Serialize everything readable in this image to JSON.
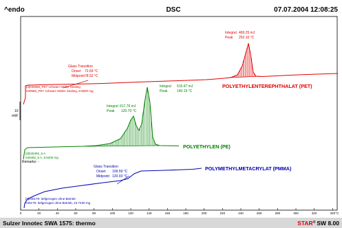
{
  "header": {
    "left": "^endo",
    "center": "DSC",
    "right": "07.07.2004 12:08:25"
  },
  "footer": {
    "left": "Sulzer Innotec SWA 1575: thermo",
    "right_star": "STAR",
    "right_rest": "SW 8.00"
  },
  "colors": {
    "frame": "#000000",
    "pet": "#e00000",
    "pe": "#008000",
    "pmma": "#0000b0",
    "footer_bar": "#d8d8d8"
  },
  "chart_data": {
    "type": "line",
    "title": "DSC",
    "xlabel": "°C",
    "xlim": [
      0,
      345
    ],
    "x_ticks": [
      0,
      20,
      40,
      60,
      80,
      100,
      120,
      140,
      160,
      180,
      200,
      220,
      240,
      260,
      280,
      300,
      320,
      340
    ],
    "scale_bar": {
      "value": "10",
      "unit": "mW"
    },
    "remarks_label": "Remarks: -",
    "series": [
      {
        "name": "POLYETHYLENTEREPHTHALAT (PET)",
        "color": "#e00000",
        "sample_lines": [
          "[3]030666_PET schwarz Müller Sealing",
          "030666_PET schwarz Müller Sealing, 8.9600 mg"
        ],
        "annotations": [
          {
            "kind": "Glass Transition",
            "lines": [
              [
                "Onset",
                "72.69 °C"
              ],
              [
                "Midpoint",
                "78.52 °C"
              ]
            ]
          },
          {
            "kind": "Integral",
            "value": "469.25 mJ",
            "lines": [
              [
                "Peak",
                "252.10 °C"
              ]
            ]
          }
        ]
      },
      {
        "name": "POLYETHYLEN (PE)",
        "color": "#008000",
        "sample_lines": [
          "[2]040492_5 A",
          "040492_5 A, 8.6200 mg"
        ],
        "annotations": [
          {
            "kind": "Integral",
            "value": "617.76 mJ",
            "lines": [
              [
                "Peak",
                "120.70 °C"
              ]
            ]
          },
          {
            "kind": "Integral",
            "value": "515.67 mJ",
            "lines": [
              [
                "Peak",
                "140.19 °C"
              ]
            ]
          }
        ]
      },
      {
        "name": "POLYMETHYLMETACRYLAT (PMMA)",
        "color": "#0000b0",
        "sample_lines": [
          "[3]040179- tiefgezogen ohne Betrieb",
          "040179- tiefgezogen ohne Betrieb, 10.7400 mg"
        ],
        "annotations": [
          {
            "kind": "Glass Transition",
            "lines": [
              [
                "Onset",
                "109.59 °C"
              ],
              [
                "Midpoint",
                "120.03 °C"
              ]
            ]
          }
        ]
      }
    ]
  }
}
